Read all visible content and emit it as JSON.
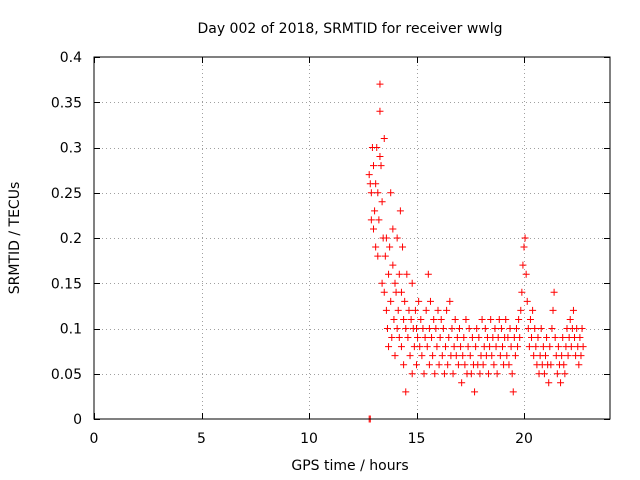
{
  "chart_data": {
    "type": "scatter",
    "title": "Day 002 of 2018, SRMTID for receiver wwlg",
    "xlabel": "GPS time / hours",
    "ylabel": "SRMTID / TECUs",
    "xlim": [
      0,
      24
    ],
    "ylim": [
      0,
      0.4
    ],
    "xticks": [
      0,
      5,
      10,
      15,
      20
    ],
    "xtick_labels": [
      "0",
      "5",
      "10",
      "15",
      "20"
    ],
    "yticks": [
      0,
      0.05,
      0.1,
      0.15,
      0.2,
      0.25,
      0.3,
      0.35,
      0.4
    ],
    "ytick_labels": [
      "0",
      "0.05",
      "0.1",
      "0.15",
      "0.2",
      "0.25",
      "0.3",
      "0.35",
      "0.4"
    ],
    "grid": true,
    "marker": "+",
    "series": [
      {
        "name": "SRMTID",
        "color": "#ff0000",
        "points": [
          [
            12.8,
            0.0
          ],
          [
            12.85,
            0.0
          ],
          [
            12.8,
            0.27
          ],
          [
            12.85,
            0.26
          ],
          [
            12.9,
            0.25
          ],
          [
            12.9,
            0.22
          ],
          [
            12.95,
            0.3
          ],
          [
            13.0,
            0.28
          ],
          [
            13.0,
            0.21
          ],
          [
            13.05,
            0.23
          ],
          [
            13.1,
            0.26
          ],
          [
            13.1,
            0.19
          ],
          [
            13.15,
            0.3
          ],
          [
            13.2,
            0.25
          ],
          [
            13.2,
            0.18
          ],
          [
            13.25,
            0.22
          ],
          [
            13.3,
            0.34
          ],
          [
            13.3,
            0.37
          ],
          [
            13.3,
            0.29
          ],
          [
            13.35,
            0.28
          ],
          [
            13.4,
            0.24
          ],
          [
            13.4,
            0.15
          ],
          [
            13.45,
            0.2
          ],
          [
            13.5,
            0.31
          ],
          [
            13.5,
            0.14
          ],
          [
            13.55,
            0.18
          ],
          [
            13.6,
            0.12
          ],
          [
            13.6,
            0.2
          ],
          [
            13.65,
            0.1
          ],
          [
            13.7,
            0.16
          ],
          [
            13.7,
            0.08
          ],
          [
            13.75,
            0.19
          ],
          [
            13.8,
            0.25
          ],
          [
            13.8,
            0.13
          ],
          [
            13.85,
            0.09
          ],
          [
            13.9,
            0.17
          ],
          [
            13.9,
            0.21
          ],
          [
            13.95,
            0.11
          ],
          [
            14.0,
            0.15
          ],
          [
            14.0,
            0.07
          ],
          [
            14.05,
            0.14
          ],
          [
            14.1,
            0.2
          ],
          [
            14.1,
            0.1
          ],
          [
            14.15,
            0.12
          ],
          [
            14.2,
            0.16
          ],
          [
            14.2,
            0.09
          ],
          [
            14.25,
            0.23
          ],
          [
            14.3,
            0.14
          ],
          [
            14.3,
            0.08
          ],
          [
            14.35,
            0.19
          ],
          [
            14.4,
            0.11
          ],
          [
            14.4,
            0.06
          ],
          [
            14.45,
            0.13
          ],
          [
            14.5,
            0.1
          ],
          [
            14.5,
            0.03
          ],
          [
            14.55,
            0.16
          ],
          [
            14.6,
            0.09
          ],
          [
            14.65,
            0.12
          ],
          [
            14.7,
            0.07
          ],
          [
            14.75,
            0.11
          ],
          [
            14.8,
            0.15
          ],
          [
            14.8,
            0.05
          ],
          [
            14.85,
            0.1
          ],
          [
            14.9,
            0.08
          ],
          [
            14.95,
            0.12
          ],
          [
            15.0,
            0.1
          ],
          [
            15.0,
            0.06
          ],
          [
            15.05,
            0.09
          ],
          [
            15.1,
            0.13
          ],
          [
            15.15,
            0.08
          ],
          [
            15.2,
            0.11
          ],
          [
            15.25,
            0.07
          ],
          [
            15.3,
            0.1
          ],
          [
            15.35,
            0.05
          ],
          [
            15.4,
            0.09
          ],
          [
            15.45,
            0.12
          ],
          [
            15.5,
            0.08
          ],
          [
            15.55,
            0.16
          ],
          [
            15.6,
            0.1
          ],
          [
            15.6,
            0.06
          ],
          [
            15.65,
            0.13
          ],
          [
            15.7,
            0.09
          ],
          [
            15.75,
            0.07
          ],
          [
            15.8,
            0.11
          ],
          [
            15.85,
            0.05
          ],
          [
            15.9,
            0.1
          ],
          [
            15.95,
            0.08
          ],
          [
            16.0,
            0.12
          ],
          [
            16.05,
            0.06
          ],
          [
            16.1,
            0.09
          ],
          [
            16.15,
            0.11
          ],
          [
            16.2,
            0.07
          ],
          [
            16.25,
            0.1
          ],
          [
            16.3,
            0.05
          ],
          [
            16.35,
            0.08
          ],
          [
            16.4,
            0.12
          ],
          [
            16.45,
            0.06
          ],
          [
            16.5,
            0.09
          ],
          [
            16.55,
            0.13
          ],
          [
            16.6,
            0.07
          ],
          [
            16.65,
            0.1
          ],
          [
            16.7,
            0.05
          ],
          [
            16.75,
            0.08
          ],
          [
            16.8,
            0.11
          ],
          [
            16.85,
            0.07
          ],
          [
            16.9,
            0.09
          ],
          [
            16.95,
            0.06
          ],
          [
            17.0,
            0.1
          ],
          [
            17.05,
            0.08
          ],
          [
            17.1,
            0.04
          ],
          [
            17.15,
            0.07
          ],
          [
            17.2,
            0.09
          ],
          [
            17.25,
            0.06
          ],
          [
            17.3,
            0.11
          ],
          [
            17.35,
            0.05
          ],
          [
            17.4,
            0.08
          ],
          [
            17.45,
            0.1
          ],
          [
            17.5,
            0.07
          ],
          [
            17.55,
            0.05
          ],
          [
            17.6,
            0.09
          ],
          [
            17.65,
            0.06
          ],
          [
            17.7,
            0.03
          ],
          [
            17.75,
            0.08
          ],
          [
            17.8,
            0.1
          ],
          [
            17.85,
            0.06
          ],
          [
            17.9,
            0.09
          ],
          [
            17.95,
            0.05
          ],
          [
            18.0,
            0.07
          ],
          [
            18.05,
            0.11
          ],
          [
            18.1,
            0.06
          ],
          [
            18.15,
            0.08
          ],
          [
            18.2,
            0.1
          ],
          [
            18.25,
            0.07
          ],
          [
            18.3,
            0.09
          ],
          [
            18.35,
            0.05
          ],
          [
            18.4,
            0.08
          ],
          [
            18.45,
            0.11
          ],
          [
            18.5,
            0.07
          ],
          [
            18.55,
            0.09
          ],
          [
            18.6,
            0.06
          ],
          [
            18.65,
            0.1
          ],
          [
            18.7,
            0.08
          ],
          [
            18.75,
            0.05
          ],
          [
            18.8,
            0.09
          ],
          [
            18.85,
            0.11
          ],
          [
            18.9,
            0.07
          ],
          [
            18.95,
            0.1
          ],
          [
            19.0,
            0.08
          ],
          [
            19.05,
            0.06
          ],
          [
            19.1,
            0.09
          ],
          [
            19.15,
            0.11
          ],
          [
            19.2,
            0.07
          ],
          [
            19.25,
            0.09
          ],
          [
            19.3,
            0.06
          ],
          [
            19.35,
            0.1
          ],
          [
            19.4,
            0.08
          ],
          [
            19.45,
            0.05
          ],
          [
            19.5,
            0.03
          ],
          [
            19.55,
            0.09
          ],
          [
            19.6,
            0.07
          ],
          [
            19.65,
            0.1
          ],
          [
            19.7,
            0.08
          ],
          [
            19.75,
            0.11
          ],
          [
            19.8,
            0.09
          ],
          [
            19.85,
            0.12
          ],
          [
            19.9,
            0.14
          ],
          [
            19.95,
            0.17
          ],
          [
            20.0,
            0.19
          ],
          [
            20.05,
            0.2
          ],
          [
            20.1,
            0.16
          ],
          [
            20.15,
            0.13
          ],
          [
            20.2,
            0.1
          ],
          [
            20.25,
            0.08
          ],
          [
            20.3,
            0.11
          ],
          [
            20.35,
            0.09
          ],
          [
            20.4,
            0.12
          ],
          [
            20.45,
            0.07
          ],
          [
            20.5,
            0.1
          ],
          [
            20.55,
            0.08
          ],
          [
            20.6,
            0.06
          ],
          [
            20.65,
            0.09
          ],
          [
            20.7,
            0.05
          ],
          [
            20.75,
            0.07
          ],
          [
            20.8,
            0.1
          ],
          [
            20.85,
            0.06
          ],
          [
            20.9,
            0.08
          ],
          [
            20.95,
            0.05
          ],
          [
            21.0,
            0.07
          ],
          [
            21.05,
            0.09
          ],
          [
            21.1,
            0.06
          ],
          [
            21.15,
            0.04
          ],
          [
            21.2,
            0.08
          ],
          [
            21.25,
            0.06
          ],
          [
            21.3,
            0.1
          ],
          [
            21.35,
            0.12
          ],
          [
            21.4,
            0.14
          ],
          [
            21.45,
            0.09
          ],
          [
            21.5,
            0.07
          ],
          [
            21.55,
            0.05
          ],
          [
            21.6,
            0.08
          ],
          [
            21.65,
            0.06
          ],
          [
            21.7,
            0.04
          ],
          [
            21.75,
            0.07
          ],
          [
            21.8,
            0.09
          ],
          [
            21.85,
            0.06
          ],
          [
            21.9,
            0.05
          ],
          [
            21.95,
            0.08
          ],
          [
            22.0,
            0.1
          ],
          [
            22.05,
            0.07
          ],
          [
            22.1,
            0.09
          ],
          [
            22.15,
            0.11
          ],
          [
            22.2,
            0.08
          ],
          [
            22.25,
            0.1
          ],
          [
            22.3,
            0.12
          ],
          [
            22.35,
            0.09
          ],
          [
            22.4,
            0.07
          ],
          [
            22.45,
            0.1
          ],
          [
            22.5,
            0.08
          ],
          [
            22.55,
            0.06
          ],
          [
            22.6,
            0.09
          ],
          [
            22.65,
            0.07
          ],
          [
            22.7,
            0.1
          ],
          [
            22.75,
            0.08
          ]
        ]
      }
    ]
  }
}
